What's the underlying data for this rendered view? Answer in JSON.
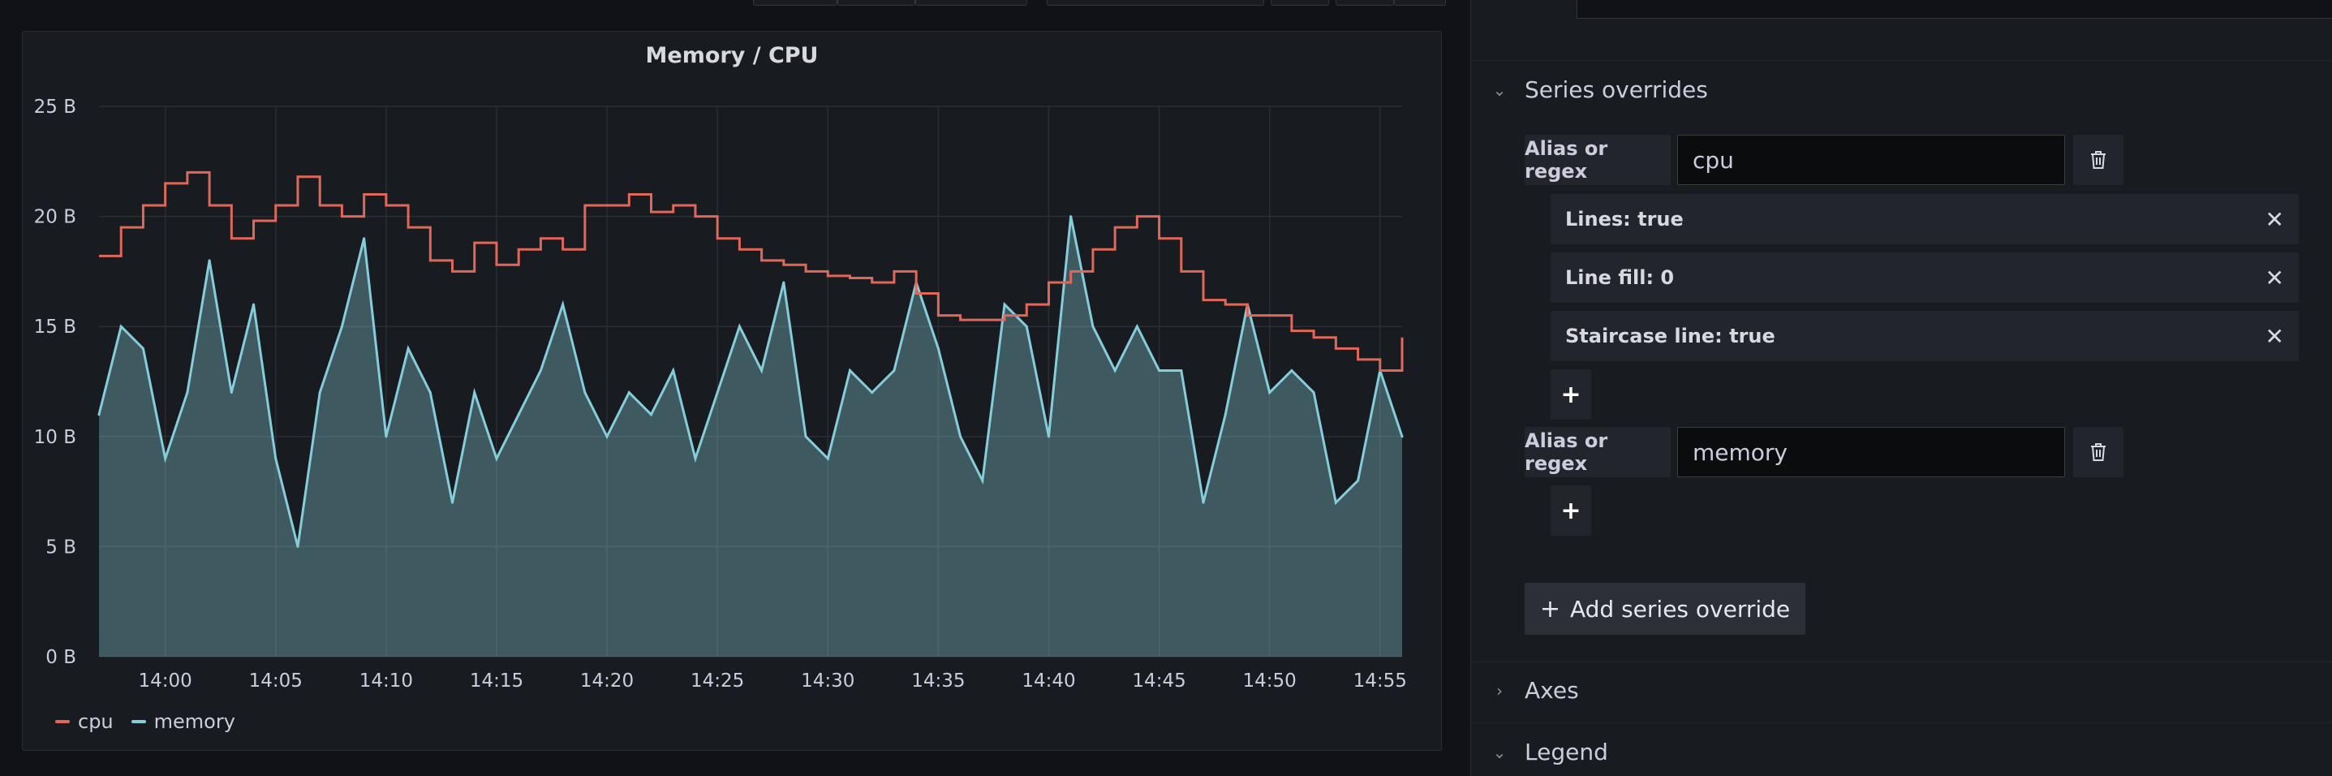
{
  "panel": {
    "title": "Memory / CPU",
    "legend": [
      {
        "name": "cpu",
        "color": "#e0685a"
      },
      {
        "name": "memory",
        "color": "#86cddb"
      }
    ]
  },
  "chart_data": {
    "type": "line",
    "title": "Memory / CPU",
    "xlabel": "",
    "ylabel": "",
    "x_ticks": [
      "14:00",
      "14:05",
      "14:10",
      "14:15",
      "14:20",
      "14:25",
      "14:30",
      "14:35",
      "14:40",
      "14:45",
      "14:50",
      "14:55"
    ],
    "y_ticks": [
      "0 B",
      "5 B",
      "10 B",
      "15 B",
      "20 B",
      "25 B"
    ],
    "xlim": [
      "13:57",
      "14:56"
    ],
    "ylim": [
      0,
      25
    ],
    "grid": true,
    "legend_position": "bottom-left",
    "series": [
      {
        "name": "memory",
        "style": "line-with-area-fill",
        "color": "#86cddb",
        "x": [
          "13:57",
          "13:58",
          "13:59",
          "14:00",
          "14:01",
          "14:02",
          "14:03",
          "14:04",
          "14:05",
          "14:06",
          "14:07",
          "14:08",
          "14:09",
          "14:10",
          "14:11",
          "14:12",
          "14:13",
          "14:14",
          "14:15",
          "14:16",
          "14:17",
          "14:18",
          "14:19",
          "14:20",
          "14:21",
          "14:22",
          "14:23",
          "14:24",
          "14:25",
          "14:26",
          "14:27",
          "14:28",
          "14:29",
          "14:30",
          "14:31",
          "14:32",
          "14:33",
          "14:34",
          "14:35",
          "14:36",
          "14:37",
          "14:38",
          "14:39",
          "14:40",
          "14:41",
          "14:42",
          "14:43",
          "14:44",
          "14:45",
          "14:46",
          "14:47",
          "14:48",
          "14:49",
          "14:50",
          "14:51",
          "14:52",
          "14:53",
          "14:54",
          "14:55",
          "14:56"
        ],
        "values": [
          11,
          15,
          14,
          9,
          12,
          18,
          12,
          16,
          9,
          5,
          12,
          15,
          19,
          10,
          14,
          12,
          7,
          12,
          9,
          11,
          13,
          16,
          12,
          10,
          12,
          11,
          13,
          9,
          12,
          15,
          13,
          17,
          10,
          9,
          13,
          12,
          13,
          17,
          14,
          10,
          8,
          16,
          15,
          10,
          20,
          15,
          13,
          15,
          13,
          13,
          7,
          11,
          16,
          12,
          13,
          12,
          7,
          8,
          13,
          10
        ]
      },
      {
        "name": "cpu",
        "style": "staircase-line",
        "color": "#e0685a",
        "x": [
          "13:57",
          "13:58",
          "13:59",
          "14:00",
          "14:01",
          "14:02",
          "14:03",
          "14:04",
          "14:05",
          "14:06",
          "14:07",
          "14:08",
          "14:09",
          "14:10",
          "14:11",
          "14:12",
          "14:13",
          "14:14",
          "14:15",
          "14:16",
          "14:17",
          "14:18",
          "14:19",
          "14:20",
          "14:21",
          "14:22",
          "14:23",
          "14:24",
          "14:25",
          "14:26",
          "14:27",
          "14:28",
          "14:29",
          "14:30",
          "14:31",
          "14:32",
          "14:33",
          "14:34",
          "14:35",
          "14:36",
          "14:37",
          "14:38",
          "14:39",
          "14:40",
          "14:41",
          "14:42",
          "14:43",
          "14:44",
          "14:45",
          "14:46",
          "14:47",
          "14:48",
          "14:49",
          "14:50",
          "14:51",
          "14:52",
          "14:53",
          "14:54",
          "14:55",
          "14:56"
        ],
        "values": [
          18.2,
          19.5,
          20.5,
          21.5,
          22,
          20.5,
          19,
          19.8,
          20.5,
          21.8,
          20.5,
          20,
          21,
          20.5,
          19.5,
          18,
          17.5,
          18.8,
          17.8,
          18.5,
          19,
          18.5,
          20.5,
          20.5,
          21,
          20.2,
          20.5,
          20,
          19,
          18.5,
          18,
          17.8,
          17.5,
          17.3,
          17.2,
          17,
          17.5,
          16.5,
          15.5,
          15.3,
          15.3,
          15.5,
          16,
          17,
          17.5,
          18.5,
          19.5,
          20,
          19,
          17.5,
          16.2,
          16,
          15.5,
          15.5,
          14.8,
          14.5,
          14,
          13.5,
          13,
          14.5
        ]
      }
    ]
  },
  "sidebar": {
    "series_overrides": {
      "header": "Series overrides",
      "overrides": [
        {
          "alias_label": "Alias or regex",
          "alias_value": "cpu",
          "options": [
            "Lines: true",
            "Line fill: 0",
            "Staircase line: true"
          ]
        },
        {
          "alias_label": "Alias or regex",
          "alias_value": "memory",
          "options": []
        }
      ],
      "add_label": "Add series override"
    },
    "axes_header": "Axes",
    "legend_header": "Legend",
    "icons": {
      "delete": "trash-icon",
      "remove_option": "close-icon",
      "add_option": "plus-icon",
      "collapse": "chevron-down-icon",
      "expand": "chevron-right-icon"
    }
  }
}
